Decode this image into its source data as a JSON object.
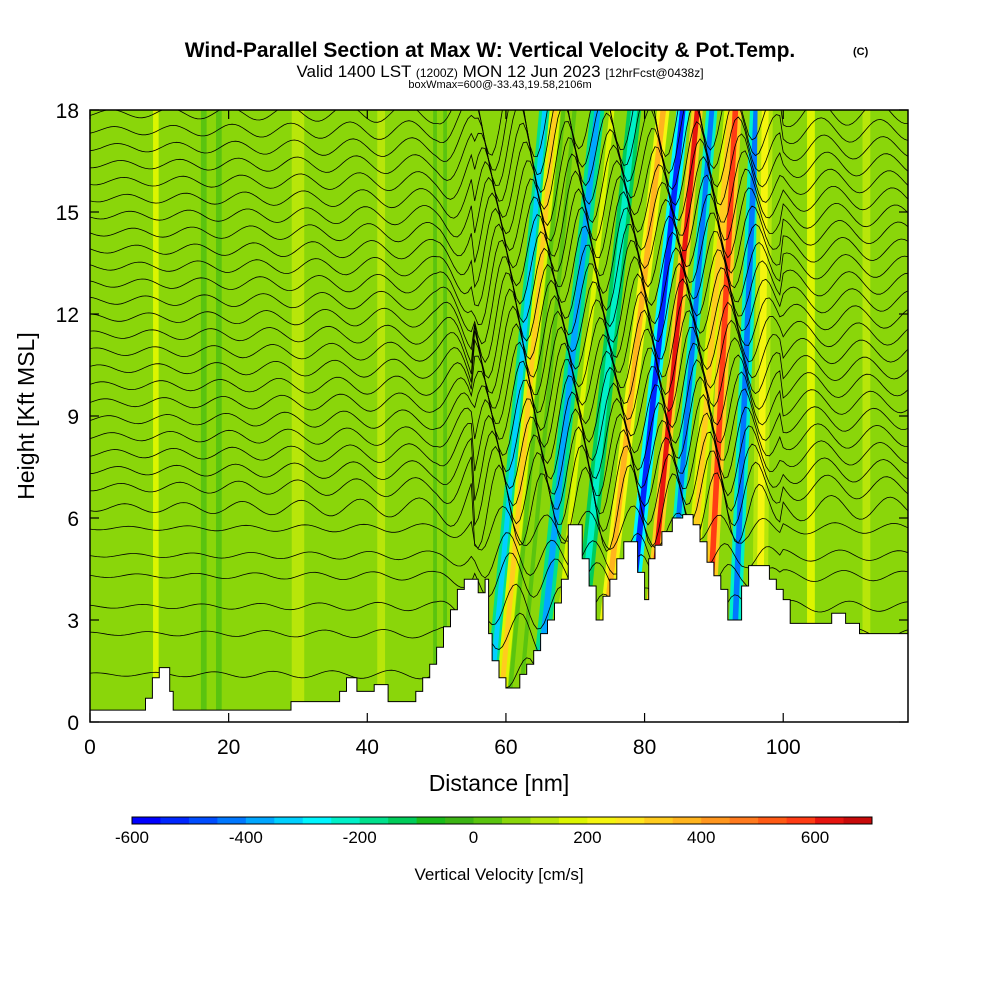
{
  "chart_data": {
    "type": "heatmap",
    "title": "Wind-Parallel Section at Max W: Vertical Velocity & Pot.Temp.",
    "title_mark": "(C)",
    "subtitle": {
      "valid_prefix": "Valid 1400 LST",
      "utc": "(1200Z)",
      "valid_date": "MON 12 Jun 2023",
      "forecast": "[12hrFcst@0438z]"
    },
    "box_info": "boxWmax=600@-33.43,19.58,2106m",
    "xlabel": "Distance [nm]",
    "ylabel": "Height [Kft MSL]",
    "xlim": [
      0,
      118
    ],
    "ylim": [
      0,
      18
    ],
    "x_ticks": [
      {
        "value": 0,
        "label": "0"
      },
      {
        "value": 20,
        "label": "20"
      },
      {
        "value": 40,
        "label": "40"
      },
      {
        "value": 60,
        "label": "60"
      },
      {
        "value": 80,
        "label": "80"
      },
      {
        "value": 100,
        "label": "100"
      }
    ],
    "y_ticks": [
      {
        "value": 0,
        "label": "0"
      },
      {
        "value": 3,
        "label": "3"
      },
      {
        "value": 6,
        "label": "6"
      },
      {
        "value": 9,
        "label": "9"
      },
      {
        "value": 12,
        "label": "12"
      },
      {
        "value": 15,
        "label": "15"
      },
      {
        "value": 18,
        "label": "18"
      }
    ],
    "colorbar": {
      "label": "Vertical Velocity [cm/s]",
      "range": [
        -600,
        700
      ],
      "step": 50,
      "colors": [
        "#0000ff",
        "#0026ff",
        "#004cff",
        "#0077ff",
        "#00a6ff",
        "#00d0ff",
        "#00f6ff",
        "#00f0c8",
        "#00e08c",
        "#00cc5a",
        "#19bb19",
        "#3cb414",
        "#5ac40f",
        "#8ad60a",
        "#b8e60a",
        "#dcf500",
        "#f5f50f",
        "#ffe61e",
        "#ffcc1e",
        "#ffb41e",
        "#ff961e",
        "#ff7a1e",
        "#ff5a14",
        "#ff3c14",
        "#e6140f",
        "#c80a0a"
      ],
      "ticks": [
        {
          "value": -600,
          "label": "-600"
        },
        {
          "value": -400,
          "label": "-400"
        },
        {
          "value": -200,
          "label": "-200"
        },
        {
          "value": 0,
          "label": "0"
        },
        {
          "value": 200,
          "label": "200"
        },
        {
          "value": 400,
          "label": "400"
        },
        {
          "value": 600,
          "label": "600"
        }
      ]
    },
    "terrain_kft": [
      [
        0,
        0.35
      ],
      [
        8,
        0.35
      ],
      [
        8,
        0.7
      ],
      [
        9,
        0.7
      ],
      [
        9,
        1.3
      ],
      [
        10,
        1.3
      ],
      [
        10,
        1.6
      ],
      [
        11.5,
        1.6
      ],
      [
        11.5,
        0.9
      ],
      [
        12,
        0.9
      ],
      [
        12,
        0.35
      ],
      [
        29,
        0.35
      ],
      [
        29,
        0.6
      ],
      [
        36,
        0.6
      ],
      [
        36,
        0.9
      ],
      [
        37,
        0.9
      ],
      [
        37,
        1.3
      ],
      [
        38.5,
        1.3
      ],
      [
        38.5,
        0.9
      ],
      [
        41,
        0.9
      ],
      [
        41,
        1.1
      ],
      [
        43,
        1.1
      ],
      [
        43,
        0.6
      ],
      [
        47,
        0.6
      ],
      [
        47,
        0.9
      ],
      [
        48,
        0.9
      ],
      [
        48,
        1.3
      ],
      [
        49,
        1.3
      ],
      [
        49,
        1.7
      ],
      [
        50,
        1.7
      ],
      [
        50,
        2.2
      ],
      [
        51,
        2.2
      ],
      [
        51,
        2.8
      ],
      [
        52,
        2.8
      ],
      [
        52,
        3.3
      ],
      [
        53,
        3.3
      ],
      [
        53,
        3.9
      ],
      [
        54,
        3.9
      ],
      [
        54,
        4.2
      ],
      [
        56,
        4.2
      ],
      [
        56,
        3.8
      ],
      [
        57,
        3.8
      ],
      [
        57,
        4.2
      ],
      [
        57.5,
        4.2
      ],
      [
        57.5,
        2.6
      ],
      [
        58,
        2.6
      ],
      [
        58,
        1.8
      ],
      [
        59,
        1.8
      ],
      [
        59,
        1.3
      ],
      [
        60,
        1.3
      ],
      [
        60,
        1.0
      ],
      [
        62,
        1.0
      ],
      [
        62,
        1.4
      ],
      [
        63,
        1.4
      ],
      [
        63,
        1.7
      ],
      [
        64,
        1.7
      ],
      [
        64,
        2.1
      ],
      [
        65,
        2.1
      ],
      [
        65,
        2.6
      ],
      [
        66,
        2.6
      ],
      [
        66,
        3.0
      ],
      [
        67,
        3.0
      ],
      [
        67,
        3.5
      ],
      [
        68,
        3.5
      ],
      [
        68,
        4.2
      ],
      [
        69,
        4.2
      ],
      [
        69,
        5.8
      ],
      [
        71,
        5.8
      ],
      [
        71,
        4.8
      ],
      [
        72,
        4.8
      ],
      [
        72,
        4.0
      ],
      [
        73,
        4.0
      ],
      [
        73,
        3.0
      ],
      [
        74,
        3.0
      ],
      [
        74,
        3.7
      ],
      [
        75,
        3.7
      ],
      [
        75,
        4.2
      ],
      [
        76,
        4.2
      ],
      [
        76,
        4.8
      ],
      [
        77,
        4.8
      ],
      [
        77,
        5.3
      ],
      [
        79,
        5.3
      ],
      [
        79,
        4.4
      ],
      [
        80,
        4.4
      ],
      [
        80,
        3.6
      ],
      [
        80.6,
        3.6
      ],
      [
        80.6,
        4.8
      ],
      [
        81.5,
        4.8
      ],
      [
        81.5,
        5.2
      ],
      [
        82.5,
        5.2
      ],
      [
        82.5,
        5.6
      ],
      [
        84,
        5.6
      ],
      [
        84,
        6.0
      ],
      [
        85.5,
        6.0
      ],
      [
        85.5,
        6.1
      ],
      [
        87,
        6.1
      ],
      [
        87,
        5.8
      ],
      [
        88,
        5.8
      ],
      [
        88,
        5.3
      ],
      [
        89,
        5.3
      ],
      [
        89,
        4.7
      ],
      [
        90,
        4.7
      ],
      [
        90,
        4.3
      ],
      [
        91,
        4.3
      ],
      [
        91,
        3.9
      ],
      [
        92,
        3.9
      ],
      [
        92,
        3.0
      ],
      [
        94,
        3.0
      ],
      [
        94,
        4.0
      ],
      [
        95,
        4.0
      ],
      [
        95,
        4.6
      ],
      [
        98,
        4.6
      ],
      [
        98,
        4.2
      ],
      [
        99,
        4.2
      ],
      [
        99,
        3.9
      ],
      [
        100,
        3.9
      ],
      [
        100,
        3.6
      ],
      [
        101,
        3.6
      ],
      [
        101,
        2.9
      ],
      [
        107,
        2.9
      ],
      [
        107,
        3.2
      ],
      [
        109,
        3.2
      ],
      [
        109,
        2.9
      ],
      [
        111,
        2.9
      ],
      [
        111,
        2.6
      ],
      [
        118,
        2.6
      ]
    ],
    "streaks": [
      {
        "x": 9.5,
        "lean": 0.0,
        "w": 1.8,
        "value": 150
      },
      {
        "x": 17.5,
        "lean": 0.0,
        "w": 3.0,
        "value": 50
      },
      {
        "x": 30,
        "lean": 0.0,
        "w": 4.0,
        "value": 130
      },
      {
        "x": 42,
        "lean": 0.0,
        "w": 2.5,
        "value": 110
      },
      {
        "x": 50.5,
        "lean": 0.0,
        "w": 2.0,
        "value": 90
      },
      {
        "x": 57.5,
        "lean": 0.45,
        "w": 1.6,
        "value": -320
      },
      {
        "x": 59.0,
        "lean": 0.45,
        "w": 1.6,
        "value": 330
      },
      {
        "x": 61.0,
        "lean": 0.45,
        "w": 2.2,
        "value": 80
      },
      {
        "x": 64.2,
        "lean": 0.5,
        "w": 2.0,
        "value": -360
      },
      {
        "x": 66.3,
        "lean": 0.5,
        "w": 1.6,
        "value": 180
      },
      {
        "x": 69.5,
        "lean": 0.5,
        "w": 2.0,
        "value": -250
      },
      {
        "x": 72.8,
        "lean": 0.55,
        "w": 1.8,
        "value": 380
      },
      {
        "x": 76.5,
        "lean": 0.5,
        "w": 1.8,
        "value": -520
      },
      {
        "x": 79.5,
        "lean": 0.45,
        "w": 1.6,
        "value": 630
      },
      {
        "x": 82.5,
        "lean": 0.4,
        "w": 1.6,
        "value": -440
      },
      {
        "x": 85.2,
        "lean": 0.4,
        "w": 1.8,
        "value": 300
      },
      {
        "x": 88.6,
        "lean": 0.25,
        "w": 1.8,
        "value": 560
      },
      {
        "x": 92.5,
        "lean": 0.2,
        "w": 1.8,
        "value": -420
      },
      {
        "x": 96.5,
        "lean": 0.05,
        "w": 2.2,
        "value": 220
      },
      {
        "x": 104,
        "lean": 0.0,
        "w": 2.5,
        "value": 150
      },
      {
        "x": 112,
        "lean": 0.0,
        "w": 2.5,
        "value": 130
      }
    ],
    "isentropes": {
      "levels_kft": [
        1.4,
        2.6,
        3.4,
        4.3,
        4.9,
        5.7,
        6.3,
        6.9,
        7.4,
        7.9,
        8.4,
        8.9,
        9.4,
        9.9,
        10.4,
        10.9,
        11.4,
        11.9,
        12.4,
        12.9,
        13.4,
        13.9,
        14.4,
        14.9,
        15.4,
        15.9,
        16.4,
        16.9,
        17.4,
        17.9
      ],
      "wave_amplitude_kft": [
        {
          "x": 0,
          "amp": 0.1
        },
        {
          "x": 50,
          "amp": 0.3
        },
        {
          "x": 57,
          "amp": 1.2
        },
        {
          "x": 92,
          "amp": 1.1
        },
        {
          "x": 100,
          "amp": 0.4
        },
        {
          "x": 118,
          "amp": 0.3
        }
      ]
    }
  }
}
